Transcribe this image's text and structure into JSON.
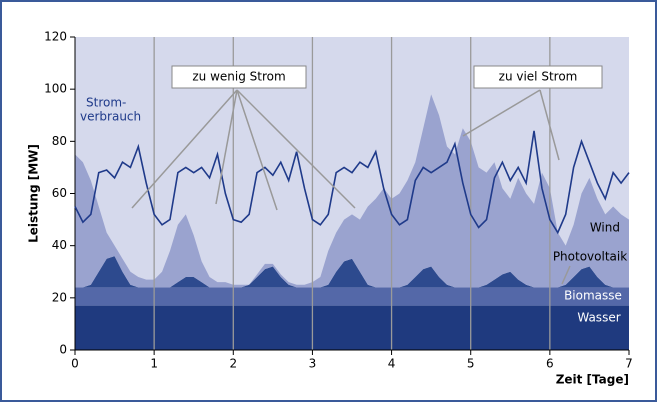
{
  "chart_data": {
    "type": "stacked_area_line",
    "ylabel": "Leistung [MW]",
    "xlabel": "Zeit [Tage]",
    "xlim": [
      0,
      7
    ],
    "xticks": [
      0,
      1,
      2,
      3,
      4,
      5,
      6,
      7
    ],
    "ylim": [
      0,
      120
    ],
    "yticks": [
      0,
      20,
      40,
      60,
      80,
      100,
      120
    ],
    "grid": "x",
    "background": "#d5d9ec",
    "x": [
      0,
      0.1,
      0.2,
      0.3,
      0.4,
      0.5,
      0.6,
      0.7,
      0.8,
      0.9,
      1,
      1.1,
      1.2,
      1.3,
      1.4,
      1.5,
      1.6,
      1.7,
      1.8,
      1.9,
      2,
      2.1,
      2.2,
      2.3,
      2.4,
      2.5,
      2.6,
      2.7,
      2.8,
      2.9,
      3,
      3.1,
      3.2,
      3.3,
      3.4,
      3.5,
      3.6,
      3.7,
      3.8,
      3.9,
      4,
      4.1,
      4.2,
      4.3,
      4.4,
      4.5,
      4.6,
      4.7,
      4.8,
      4.9,
      5,
      5.1,
      5.2,
      5.3,
      5.4,
      5.5,
      5.6,
      5.7,
      5.8,
      5.9,
      6,
      6.1,
      6.2,
      6.3,
      6.4,
      6.5,
      6.6,
      6.7,
      6.8,
      6.9,
      7
    ],
    "series": [
      {
        "name": "Wasser",
        "color": "#1f3a7f",
        "label_color": "#ffffff",
        "values": [
          17,
          17,
          17,
          17,
          17,
          17,
          17,
          17,
          17,
          17,
          17,
          17,
          17,
          17,
          17,
          17,
          17,
          17,
          17,
          17,
          17,
          17,
          17,
          17,
          17,
          17,
          17,
          17,
          17,
          17,
          17,
          17,
          17,
          17,
          17,
          17,
          17,
          17,
          17,
          17,
          17,
          17,
          17,
          17,
          17,
          17,
          17,
          17,
          17,
          17,
          17,
          17,
          17,
          17,
          17,
          17,
          17,
          17,
          17,
          17,
          17,
          17,
          17,
          17,
          17,
          17,
          17,
          17,
          17,
          17,
          17
        ]
      },
      {
        "name": "Biomasse",
        "color": "#5468a8",
        "label_color": "#ffffff",
        "values": [
          7,
          7,
          7,
          7,
          7,
          7,
          7,
          7,
          7,
          7,
          7,
          7,
          7,
          7,
          7,
          7,
          7,
          7,
          7,
          7,
          7,
          7,
          7,
          7,
          7,
          7,
          7,
          7,
          7,
          7,
          7,
          7,
          7,
          7,
          7,
          7,
          7,
          7,
          7,
          7,
          7,
          7,
          7,
          7,
          7,
          7,
          7,
          7,
          7,
          7,
          7,
          7,
          7,
          7,
          7,
          7,
          7,
          7,
          7,
          7,
          7,
          7,
          7,
          7,
          7,
          7,
          7,
          7,
          7,
          7,
          7
        ]
      },
      {
        "name": "Photovoltaik",
        "color": "#2d4a8e",
        "label_color": "#000000",
        "values": [
          0,
          0,
          1,
          6,
          11,
          12,
          6,
          1,
          0,
          0,
          0,
          0,
          0,
          2,
          4,
          4,
          2,
          0,
          0,
          0,
          0,
          0,
          1,
          4,
          7,
          8,
          4,
          1,
          0,
          0,
          0,
          0,
          1,
          6,
          10,
          11,
          6,
          1,
          0,
          0,
          0,
          0,
          1,
          4,
          7,
          8,
          4,
          1,
          0,
          0,
          0,
          0,
          1,
          3,
          5,
          6,
          3,
          1,
          0,
          0,
          0,
          0,
          1,
          4,
          7,
          8,
          4,
          1,
          0,
          0,
          0
        ]
      },
      {
        "name": "Wind",
        "color": "#9aa3cf",
        "label_color": "#000000",
        "values": [
          51,
          48,
          40,
          25,
          10,
          4,
          5,
          5,
          4,
          3,
          3,
          6,
          14,
          22,
          24,
          16,
          8,
          4,
          2,
          2,
          1,
          1,
          0,
          1,
          2,
          1,
          1,
          1,
          1,
          1,
          2,
          4,
          13,
          15,
          16,
          17,
          20,
          30,
          34,
          38,
          34,
          36,
          40,
          44,
          54,
          66,
          62,
          53,
          51,
          61,
          56,
          46,
          43,
          45,
          33,
          28,
          39,
          35,
          32,
          44,
          38,
          21,
          15,
          20,
          29,
          34,
          30,
          27,
          31,
          28,
          26
        ]
      }
    ],
    "line": {
      "name": [
        "Strom-",
        "verbrauch"
      ],
      "color": "#1f3a8a",
      "values": [
        55,
        49,
        52,
        68,
        69,
        66,
        72,
        70,
        78,
        64,
        52,
        48,
        50,
        68,
        70,
        68,
        70,
        66,
        75,
        60,
        50,
        49,
        52,
        68,
        70,
        67,
        72,
        65,
        76,
        62,
        50,
        48,
        52,
        68,
        70,
        68,
        72,
        70,
        76,
        62,
        52,
        48,
        50,
        65,
        70,
        68,
        70,
        72,
        79,
        64,
        52,
        47,
        50,
        66,
        72,
        65,
        70,
        64,
        84,
        62,
        50,
        45,
        52,
        70,
        80,
        72,
        64,
        58,
        68,
        64,
        68
      ]
    },
    "annotations": [
      "zu wenig Strom",
      "zu viel Strom"
    ]
  }
}
